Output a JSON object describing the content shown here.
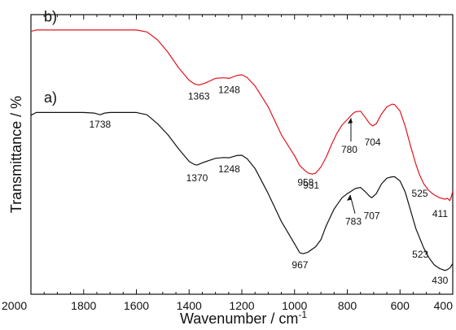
{
  "chart_data": {
    "type": "line",
    "xlabel": "Wavenumber / cm",
    "xlabel_superscript": "-1",
    "ylabel": "Transmittance / %",
    "xlim": [
      2000,
      400
    ],
    "x_reversed": true,
    "x_ticks": [
      2000,
      1800,
      1600,
      1400,
      1200,
      1000,
      800,
      600,
      400
    ],
    "x_tick_labels": [
      "2000",
      "1800",
      "1600",
      "1400",
      "1200",
      "1000",
      "800",
      "600",
      "400"
    ],
    "ylim": [
      0,
      100
    ],
    "y_ticks_shown": false,
    "grid": false,
    "series": [
      {
        "name": "b)",
        "color": "#e0141e",
        "x": [
          2000,
          1980,
          1900,
          1800,
          1700,
          1600,
          1560,
          1520,
          1480,
          1440,
          1400,
          1380,
          1363,
          1340,
          1300,
          1270,
          1248,
          1220,
          1200,
          1180,
          1150,
          1100,
          1050,
          1000,
          980,
          958,
          945,
          931,
          920,
          900,
          880,
          860,
          840,
          820,
          800,
          790,
          780,
          770,
          750,
          730,
          715,
          704,
          690,
          670,
          650,
          630,
          620,
          600,
          580,
          560,
          540,
          525,
          510,
          490,
          470,
          450,
          430,
          420,
          411,
          405,
          400
        ],
        "y": [
          94,
          94.5,
          94.5,
          94.5,
          94.5,
          94.5,
          93.8,
          91,
          86.5,
          81,
          76.5,
          75.2,
          74.8,
          75.5,
          77.2,
          77.4,
          77.2,
          78.2,
          78.5,
          77.5,
          74.5,
          67,
          57,
          49.5,
          46,
          44,
          43.2,
          43,
          43.3,
          45.5,
          49,
          53.5,
          57.5,
          60.5,
          62.5,
          63.5,
          64.5,
          65.2,
          65.5,
          63,
          61,
          60.2,
          61,
          64.5,
          67,
          68,
          67.8,
          65.5,
          60,
          53,
          46.5,
          42.5,
          39.5,
          37,
          35.5,
          34.5,
          34,
          34.3,
          33.5,
          35,
          37
        ]
      },
      {
        "name": "a)",
        "color": "#111111",
        "x": [
          2000,
          1980,
          1900,
          1800,
          1760,
          1738,
          1720,
          1700,
          1600,
          1560,
          1520,
          1480,
          1440,
          1400,
          1380,
          1370,
          1350,
          1300,
          1270,
          1248,
          1220,
          1200,
          1180,
          1150,
          1100,
          1050,
          1000,
          980,
          967,
          950,
          920,
          900,
          880,
          850,
          820,
          800,
          790,
          783,
          770,
          750,
          730,
          715,
          707,
          690,
          670,
          650,
          630,
          620,
          600,
          580,
          560,
          540,
          523,
          510,
          490,
          470,
          450,
          440,
          430,
          420,
          410,
          400
        ],
        "y": [
          64,
          65,
          65,
          65,
          64.8,
          64.2,
          64.8,
          65,
          65,
          64.2,
          61,
          57,
          52,
          47.5,
          46.4,
          46.2,
          47,
          48.6,
          48.9,
          48.8,
          49.6,
          49.7,
          48.5,
          45,
          36,
          26,
          18,
          14.8,
          14.5,
          15,
          17,
          19.5,
          24.5,
          30.5,
          34.5,
          36,
          36.5,
          37,
          37.8,
          38.2,
          36.5,
          35,
          34.5,
          36,
          39.5,
          41.5,
          42,
          42,
          40.5,
          36.5,
          30,
          23.5,
          19.5,
          16.5,
          13,
          10.5,
          9.2,
          8.9,
          8.5,
          8.8,
          9.5,
          11
        ]
      }
    ],
    "peak_labels": [
      {
        "series": "b)",
        "text": "1363",
        "x": 1363
      },
      {
        "series": "b)",
        "text": "1248",
        "x": 1248
      },
      {
        "series": "b)",
        "text": "958",
        "x": 958
      },
      {
        "series": "b)",
        "text": "931",
        "x": 931
      },
      {
        "series": "b)",
        "text": "780",
        "x": 780,
        "arrow": true
      },
      {
        "series": "b)",
        "text": "704",
        "x": 704
      },
      {
        "series": "b)",
        "text": "525",
        "x": 525
      },
      {
        "series": "b)",
        "text": "411",
        "x": 411
      },
      {
        "series": "a)",
        "text": "1738",
        "x": 1738
      },
      {
        "series": "a)",
        "text": "1370",
        "x": 1370
      },
      {
        "series": "a)",
        "text": "1248",
        "x": 1248
      },
      {
        "series": "a)",
        "text": "967",
        "x": 967
      },
      {
        "series": "a)",
        "text": "783",
        "x": 783,
        "arrow": true
      },
      {
        "series": "a)",
        "text": "707",
        "x": 707
      },
      {
        "series": "a)",
        "text": "523",
        "x": 523
      },
      {
        "series": "a)",
        "text": "430",
        "x": 430
      }
    ]
  }
}
